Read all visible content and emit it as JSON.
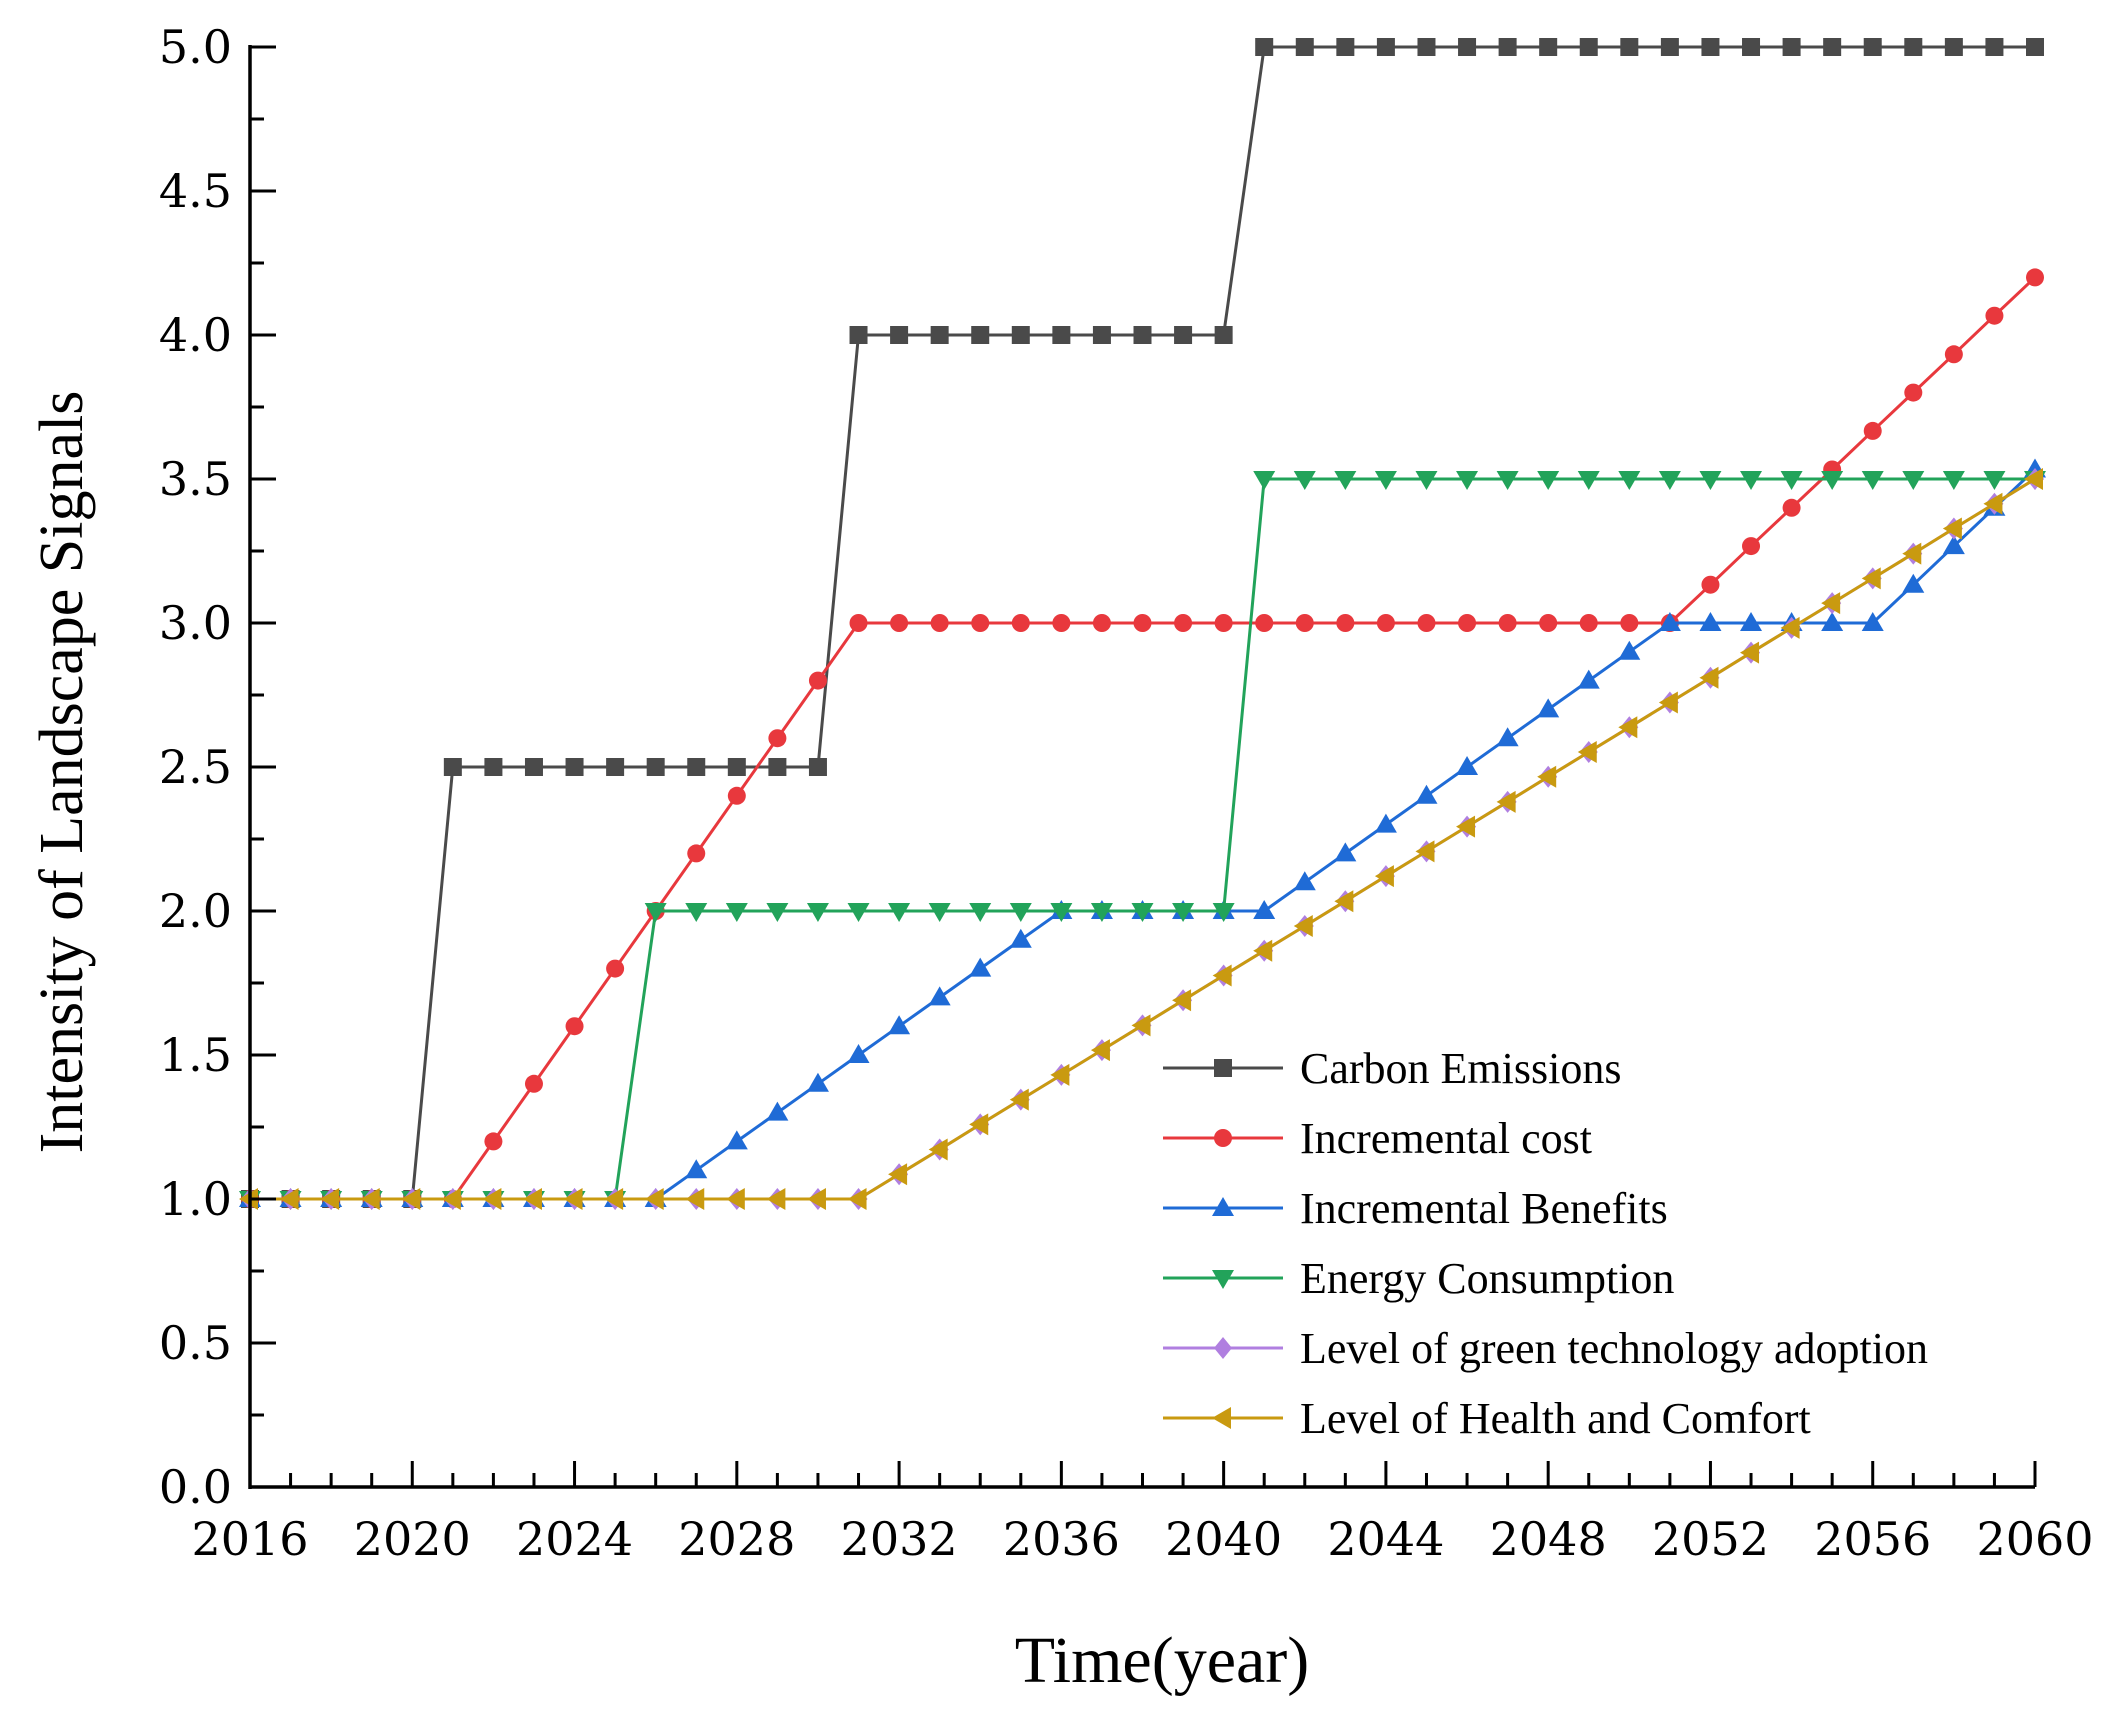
{
  "chart_data": {
    "type": "line",
    "title": "",
    "xlabel": "Time(year)",
    "ylabel": "Intensity of Landscape Signals",
    "xlim": [
      2016,
      2060
    ],
    "ylim": [
      0,
      5
    ],
    "x_ticks": [
      2016,
      2020,
      2024,
      2028,
      2032,
      2036,
      2040,
      2044,
      2048,
      2052,
      2056,
      2060
    ],
    "x_tick_labels": [
      "2016",
      "2020",
      "2024",
      "2028",
      "2032",
      "2036",
      "2040",
      "2044",
      "2048",
      "2052",
      "2056",
      "2060"
    ],
    "y_ticks": [
      0,
      0.5,
      1,
      1.5,
      2,
      2.5,
      3,
      3.5,
      4,
      4.5,
      5
    ],
    "y_tick_labels": [
      "0.0",
      "0.5",
      "1.0",
      "1.5",
      "2.0",
      "2.5",
      "3.0",
      "3.5",
      "4.0",
      "4.5",
      "5.0"
    ],
    "grid": false,
    "legend_position": "bottom-right",
    "x": [
      2016,
      2017,
      2018,
      2019,
      2020,
      2021,
      2022,
      2023,
      2024,
      2025,
      2026,
      2027,
      2028,
      2029,
      2030,
      2031,
      2032,
      2033,
      2034,
      2035,
      2036,
      2037,
      2038,
      2039,
      2040,
      2041,
      2042,
      2043,
      2044,
      2045,
      2046,
      2047,
      2048,
      2049,
      2050,
      2051,
      2052,
      2053,
      2054,
      2055,
      2056,
      2057,
      2058,
      2059,
      2060
    ],
    "series": [
      {
        "name": "Carbon Emissions",
        "color": "#4a4a4a",
        "marker": "square",
        "values": [
          1,
          1,
          1,
          1,
          1,
          2.5,
          2.5,
          2.5,
          2.5,
          2.5,
          2.5,
          2.5,
          2.5,
          2.5,
          2.5,
          4,
          4,
          4,
          4,
          4,
          4,
          4,
          4,
          4,
          4,
          5,
          5,
          5,
          5,
          5,
          5,
          5,
          5,
          5,
          5,
          5,
          5,
          5,
          5,
          5,
          5,
          5,
          5,
          5,
          5
        ]
      },
      {
        "name": "Incremental cost",
        "color": "#e8383d",
        "marker": "circle",
        "values": [
          1,
          1,
          1,
          1,
          1,
          1,
          1.2,
          1.4,
          1.6,
          1.8,
          2.0,
          2.2,
          2.4,
          2.6,
          2.8,
          3,
          3,
          3,
          3,
          3,
          3,
          3,
          3,
          3,
          3,
          3,
          3,
          3,
          3,
          3,
          3,
          3,
          3,
          3,
          3,
          3,
          3.133,
          3.267,
          3.4,
          3.533,
          3.667,
          3.8,
          3.933,
          4.067,
          4.2
        ]
      },
      {
        "name": "Incremental Benefits",
        "color": "#1f6bd6",
        "marker": "triangle-up",
        "values": [
          1,
          1,
          1,
          1,
          1,
          1,
          1,
          1,
          1,
          1,
          1,
          1.1,
          1.2,
          1.3,
          1.4,
          1.5,
          1.6,
          1.7,
          1.8,
          1.9,
          2.0,
          2.0,
          2.0,
          2.0,
          2.0,
          2.0,
          2.1,
          2.2,
          2.3,
          2.4,
          2.5,
          2.6,
          2.7,
          2.8,
          2.9,
          3.0,
          3.0,
          3.0,
          3.0,
          3.0,
          3.0,
          3.133,
          3.267,
          3.4,
          3.533
        ]
      },
      {
        "name": "Energy Consumption",
        "color": "#22a35a",
        "marker": "triangle-down",
        "values": [
          1,
          1,
          1,
          1,
          1,
          1,
          1,
          1,
          1,
          1,
          2,
          2,
          2,
          2,
          2,
          2,
          2,
          2,
          2,
          2,
          2,
          2,
          2,
          2,
          2,
          3.5,
          3.5,
          3.5,
          3.5,
          3.5,
          3.5,
          3.5,
          3.5,
          3.5,
          3.5,
          3.5,
          3.5,
          3.5,
          3.5,
          3.5,
          3.5,
          3.5,
          3.5,
          3.5,
          3.5
        ]
      },
      {
        "name": "Level of green technology adoption",
        "color": "#b07fe0",
        "marker": "diamond",
        "values": [
          1,
          1,
          1,
          1,
          1,
          1,
          1,
          1,
          1,
          1,
          1,
          1,
          1,
          1,
          1,
          1,
          1.086,
          1.172,
          1.259,
          1.345,
          1.431,
          1.517,
          1.603,
          1.69,
          1.776,
          1.862,
          1.948,
          2.034,
          2.121,
          2.207,
          2.293,
          2.379,
          2.466,
          2.552,
          2.638,
          2.724,
          2.81,
          2.897,
          2.983,
          3.069,
          3.155,
          3.241,
          3.328,
          3.414,
          3.5
        ]
      },
      {
        "name": "Level of Health and Comfort",
        "color": "#c99a10",
        "marker": "triangle-left",
        "values": [
          1,
          1,
          1,
          1,
          1,
          1,
          1,
          1,
          1,
          1,
          1,
          1,
          1,
          1,
          1,
          1,
          1.086,
          1.172,
          1.259,
          1.345,
          1.431,
          1.517,
          1.603,
          1.69,
          1.776,
          1.862,
          1.948,
          2.034,
          2.121,
          2.207,
          2.293,
          2.379,
          2.466,
          2.552,
          2.638,
          2.724,
          2.81,
          2.897,
          2.983,
          3.069,
          3.155,
          3.241,
          3.328,
          3.414,
          3.5
        ]
      }
    ]
  }
}
